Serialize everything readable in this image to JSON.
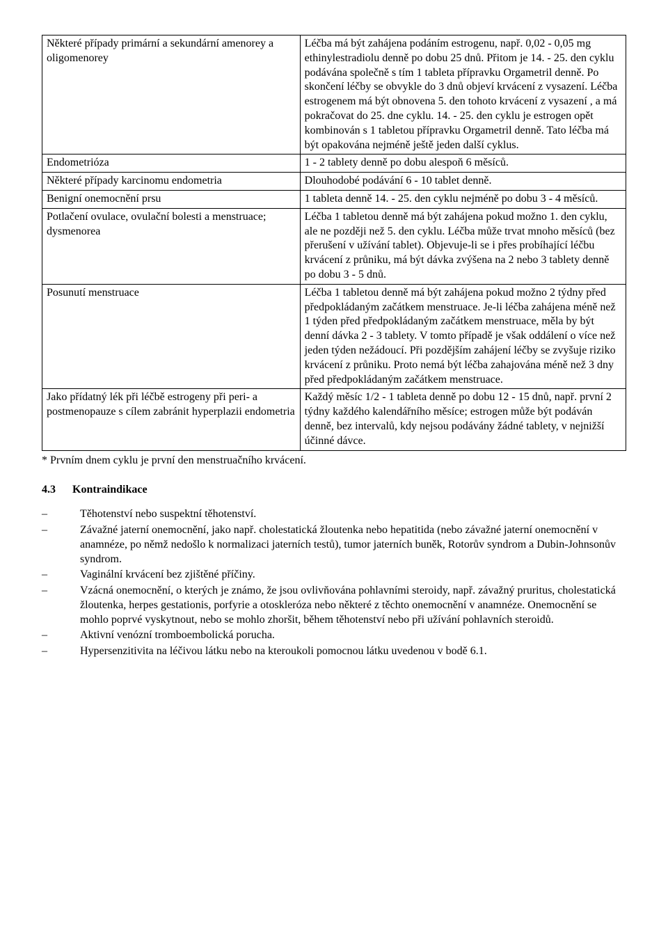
{
  "table": {
    "rows": [
      {
        "left": "Některé případy primární a sekundární amenorey a oligomenorey",
        "right": "Léčba má být zahájena podáním estrogenu, např. 0,02 - 0,05 mg ethinylestradiolu denně po dobu 25 dnů. Přitom je 14. - 25. den cyklu podávána společně s tím 1 tableta přípravku Orgametril denně. Po skončení léčby se obvykle do 3 dnů objeví krvácení z vysazení. Léčba estrogenem má být obnovena 5. den tohoto krvácení z vysazení , a má pokračovat do 25. dne cyklu. 14. - 25. den cyklu je estrogen opět kombinován s 1 tabletou přípravku Orgametril denně. Tato léčba má být opakována nejméně ještě jeden další cyklus."
      },
      {
        "left": "Endometrióza",
        "right": "1 - 2 tablety denně po dobu alespoň 6 měsíců."
      },
      {
        "left": "Některé případy karcinomu endometria",
        "right": "Dlouhodobé podávání 6 - 10 tablet denně."
      },
      {
        "left": "Benigní onemocnění prsu",
        "right": "1 tableta denně 14. - 25. den cyklu nejméně po dobu 3 - 4 měsíců."
      },
      {
        "left": "Potlačení ovulace, ovulační bolesti a menstruace; dysmenorea",
        "right": "Léčba 1 tabletou denně má být zahájena pokud možno 1. den cyklu, ale ne později než 5. den cyklu. Léčba může trvat mnoho měsíců (bez přerušení v užívání tablet). Objevuje-li se i přes probíhající léčbu krvácení z průniku, má být dávka zvýšena na 2 nebo 3 tablety denně po dobu 3 - 5 dnů."
      },
      {
        "left": "Posunutí menstruace",
        "right": "Léčba 1 tabletou denně má být zahájena pokud možno 2 týdny před předpokládaným začátkem menstruace. Je-li léčba zahájena méně než 1 týden před předpokládaným začátkem menstruace, měla by být denní dávka 2 - 3 tablety. V tomto případě je však oddálení o více než jeden týden nežádoucí. Při pozdějším zahájení léčby se zvyšuje riziko krvácení z průniku. Proto nemá být léčba zahajována méně než 3 dny před předpokládaným začátkem menstruace."
      },
      {
        "left": "Jako přídatný lék při léčbě estrogeny při peri- a postmenopauze s cílem zabránit hyperplazii endometria",
        "right": "Každý měsíc 1/2 - 1 tableta denně po dobu 12 - 15 dnů, např. první 2 týdny každého kalendářního měsíce; estrogen může být podáván denně, bez intervalů, kdy nejsou podávány žádné tablety, v nejnižší účinné dávce."
      }
    ]
  },
  "footnote": "* Prvním dnem cyklu je první den menstruačního krvácení.",
  "section": {
    "num": "4.3",
    "label": "Kontraindikace"
  },
  "bullets": [
    "Těhotenství nebo suspektní těhotenství.",
    "Závažné jaterní onemocnění, jako např. cholestatická žloutenka nebo hepatitida (nebo závažné jaterní onemocnění v anamnéze, po němž nedošlo k normalizaci jaterních testů), tumor jaterních buněk, Rotorův syndrom a Dubin-Johnsonův syndrom.",
    "Vaginální krvácení bez zjištěné příčiny.",
    "Vzácná onemocnění, o kterých je známo, že jsou ovlivňována pohlavními steroidy, např. závažný pruritus, cholestatická žloutenka, herpes gestationis, porfyrie a otoskleróza nebo některé z těchto onemocnění v anamnéze. Onemocnění se mohlo poprvé vyskytnout, nebo se mohlo zhoršit, během těhotenství nebo při užívání pohlavních steroidů.",
    "Aktivní venózní tromboembolická porucha.",
    "Hypersenzitivita na léčivou látku nebo na kteroukoli pomocnou látku uvedenou v bodě 6.1."
  ]
}
